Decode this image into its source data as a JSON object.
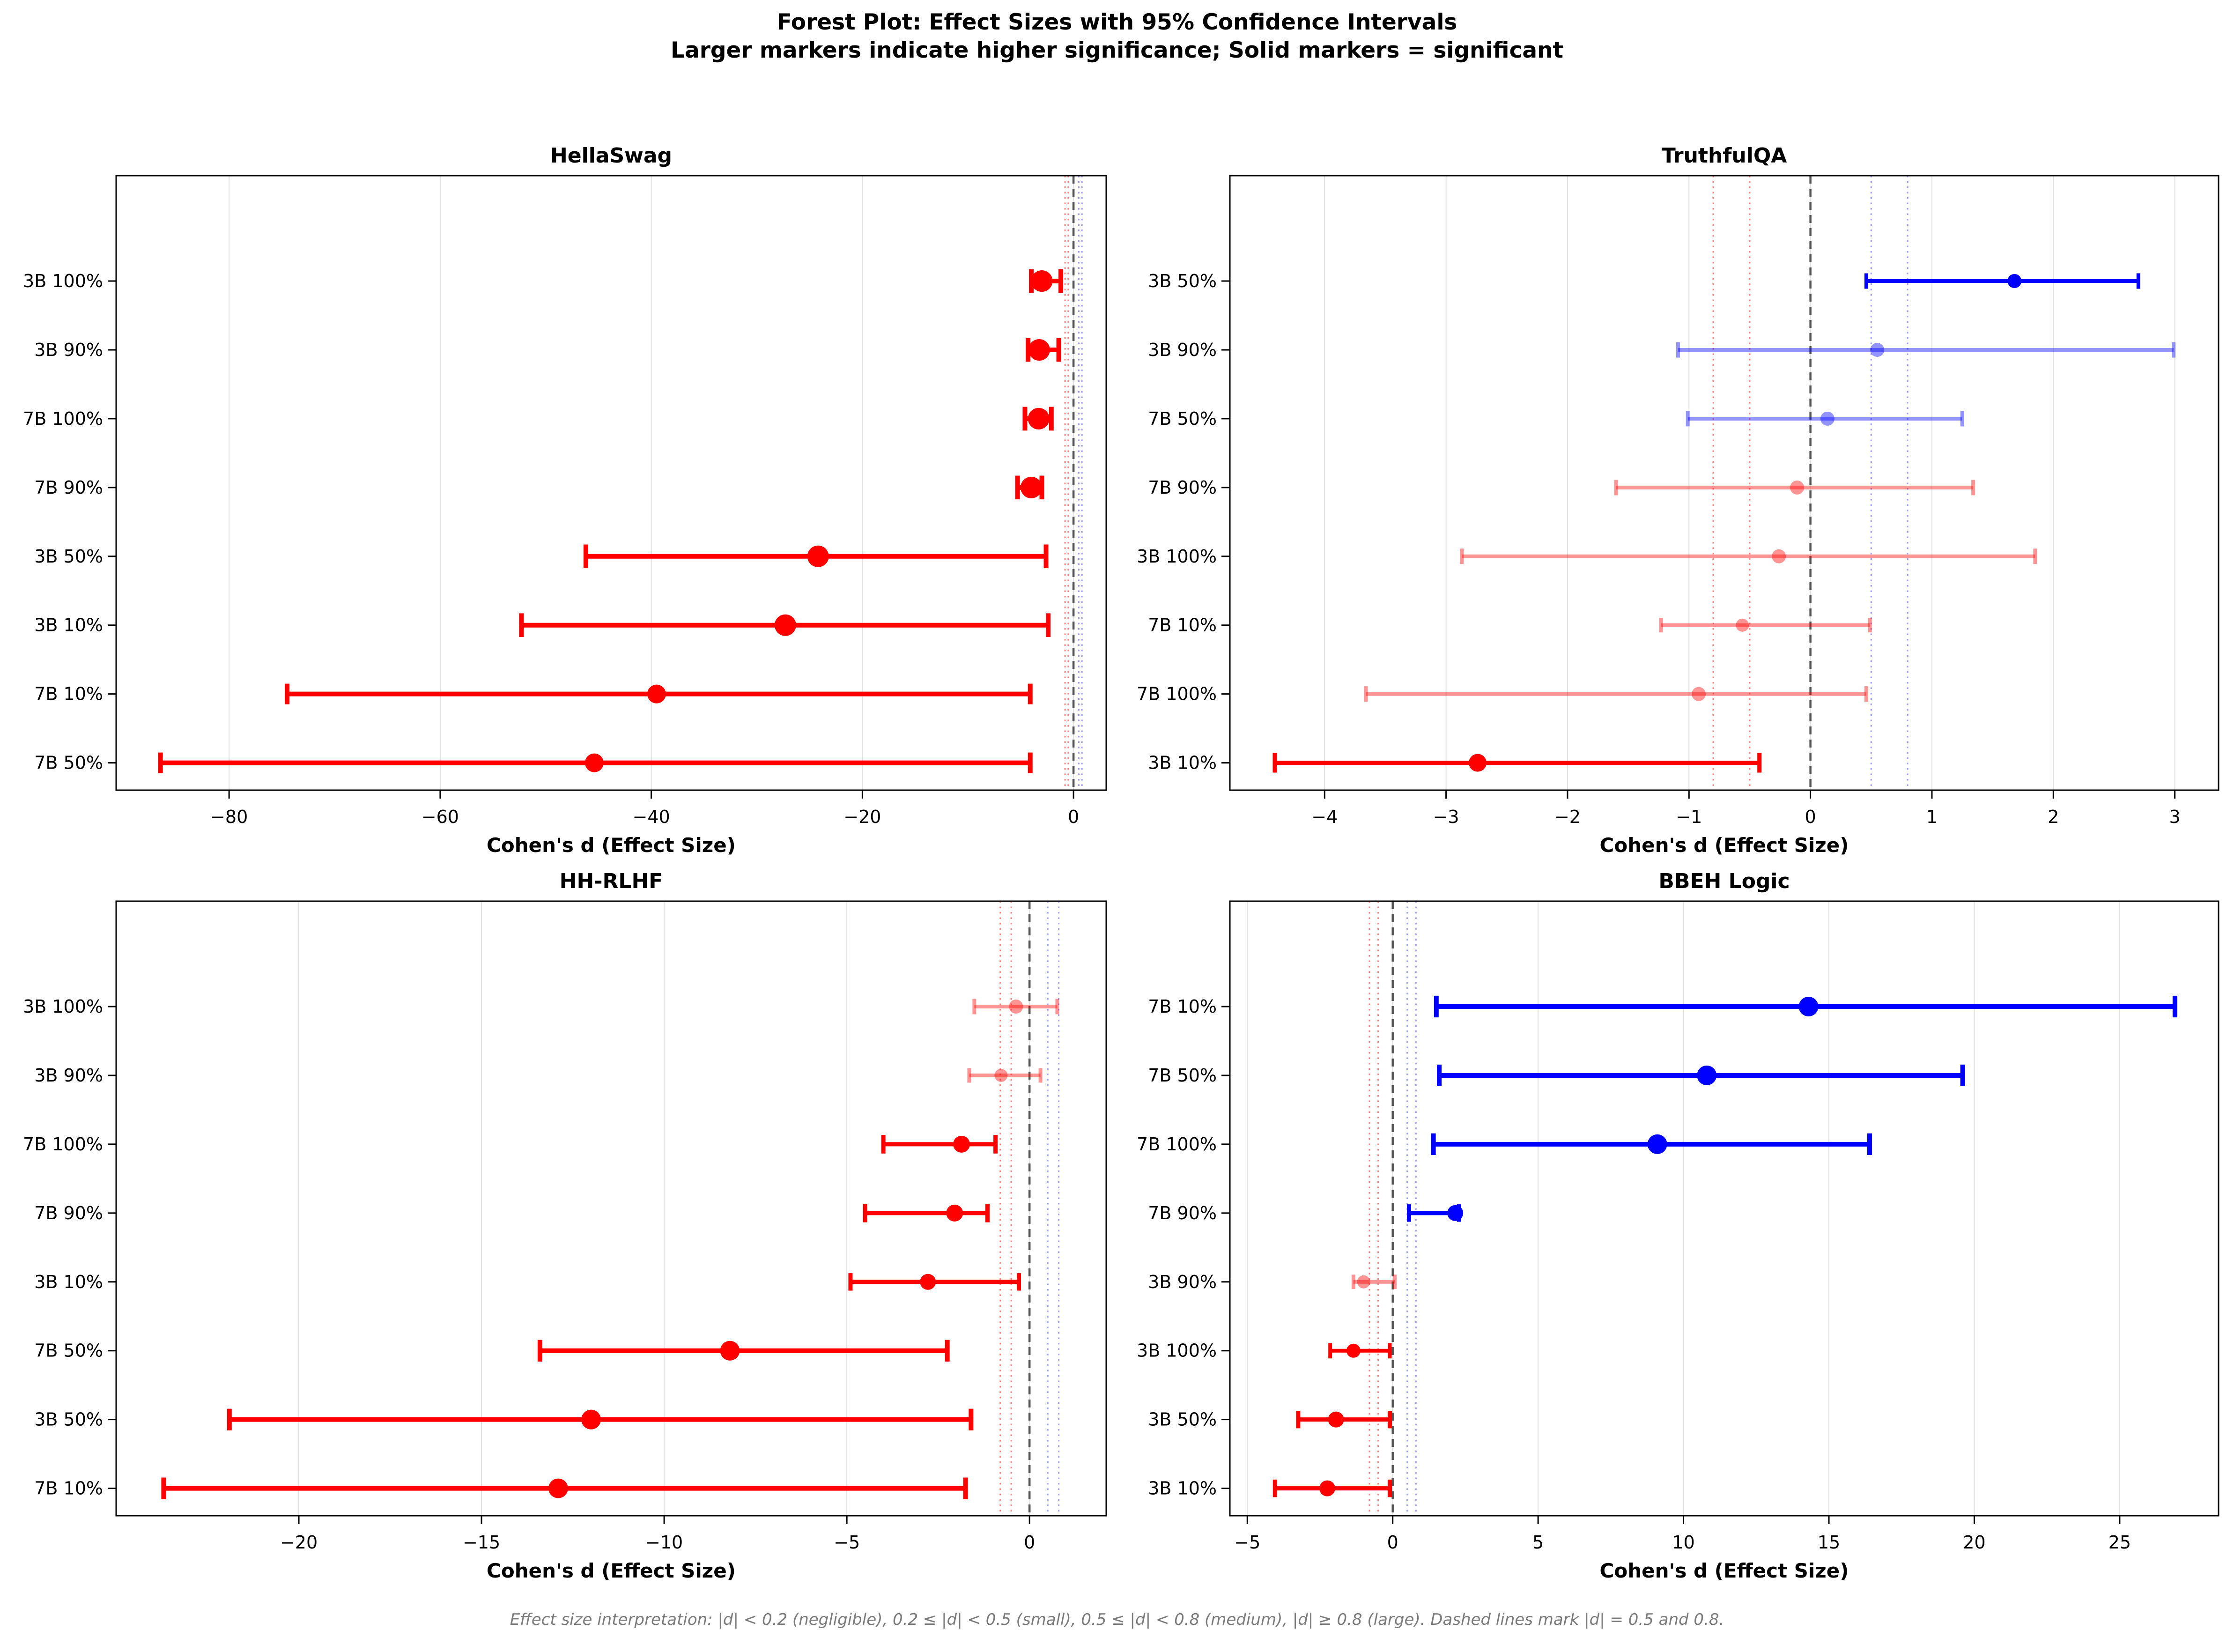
{
  "header": {
    "title_line1": "Forest Plot: Effect Sizes with 95% Confidence Intervals",
    "title_line2": "Larger markers indicate higher significance; Solid markers = significant"
  },
  "footer": {
    "note": "Effect size interpretation: |d| < 0.2 (negligible), 0.2 ≤ |d| < 0.5 (small), 0.5 ≤ |d| < 0.8 (medium), |d| ≥ 0.8 (large). Dashed lines mark |d| = 0.5 and 0.8."
  },
  "colors": {
    "negative": "#ff0000",
    "positive": "#0000ff",
    "zero_line": "#555555",
    "ref_negative": "rgba(255,0,0,0.5)",
    "ref_positive": "rgba(0,0,255,0.38)",
    "grid": "#e0e0e0",
    "axis": "#000000",
    "tick_text": "#000000",
    "footer_text": "#7a7a7a",
    "nonsignificant_opacity": 0.42
  },
  "reference_lines": {
    "zero": 0,
    "negative": [
      -0.8,
      -0.5
    ],
    "positive": [
      0.5,
      0.8
    ]
  },
  "chart_data": [
    {
      "type": "forest",
      "title": "HellaSwag",
      "xlabel": "Cohen's d (Effect Size)",
      "xlim": [
        -90.7,
        3.1
      ],
      "xticks": [
        -80,
        -60,
        -40,
        -20,
        0
      ],
      "rows": [
        {
          "label": "3B 100%",
          "d": -3.0,
          "ci_low": -4.0,
          "ci_high": -1.2,
          "significant": true,
          "direction": "negative",
          "marker_size": 46
        },
        {
          "label": "3B 90%",
          "d": -3.25,
          "ci_low": -4.3,
          "ci_high": -1.4,
          "significant": true,
          "direction": "negative",
          "marker_size": 46
        },
        {
          "label": "7B 100%",
          "d": -3.3,
          "ci_low": -4.6,
          "ci_high": -2.1,
          "significant": true,
          "direction": "negative",
          "marker_size": 46
        },
        {
          "label": "7B 90%",
          "d": -4.0,
          "ci_low": -5.3,
          "ci_high": -3.0,
          "significant": true,
          "direction": "negative",
          "marker_size": 46
        },
        {
          "label": "3B 50%",
          "d": -24.2,
          "ci_low": -46.2,
          "ci_high": -2.6,
          "significant": true,
          "direction": "negative",
          "marker_size": 46
        },
        {
          "label": "3B 10%",
          "d": -27.3,
          "ci_low": -52.3,
          "ci_high": -2.4,
          "significant": true,
          "direction": "negative",
          "marker_size": 46
        },
        {
          "label": "7B 10%",
          "d": -39.5,
          "ci_low": -74.5,
          "ci_high": -4.1,
          "significant": true,
          "direction": "negative",
          "marker_size": 40
        },
        {
          "label": "7B 50%",
          "d": -45.4,
          "ci_low": -86.5,
          "ci_high": -4.1,
          "significant": true,
          "direction": "negative",
          "marker_size": 40
        }
      ]
    },
    {
      "type": "forest",
      "title": "TruthfulQA",
      "xlabel": "Cohen's d (Effect Size)",
      "xlim": [
        -4.78,
        3.36
      ],
      "xticks": [
        -4,
        -3,
        -2,
        -1,
        0,
        1,
        2,
        3
      ],
      "rows": [
        {
          "label": "3B 50%",
          "d": 1.68,
          "ci_low": 0.46,
          "ci_high": 2.7,
          "significant": true,
          "direction": "positive",
          "marker_size": 30
        },
        {
          "label": "3B 90%",
          "d": 0.55,
          "ci_low": -1.09,
          "ci_high": 2.99,
          "significant": false,
          "direction": "positive",
          "marker_size": 30
        },
        {
          "label": "7B 50%",
          "d": 0.14,
          "ci_low": -1.01,
          "ci_high": 1.25,
          "significant": false,
          "direction": "positive",
          "marker_size": 30
        },
        {
          "label": "7B 90%",
          "d": -0.11,
          "ci_low": -1.6,
          "ci_high": 1.34,
          "significant": false,
          "direction": "negative",
          "marker_size": 30
        },
        {
          "label": "3B 100%",
          "d": -0.26,
          "ci_low": -2.87,
          "ci_high": 1.85,
          "significant": false,
          "direction": "negative",
          "marker_size": 30
        },
        {
          "label": "7B 10%",
          "d": -0.56,
          "ci_low": -1.23,
          "ci_high": 0.49,
          "significant": false,
          "direction": "negative",
          "marker_size": 28
        },
        {
          "label": "7B 100%",
          "d": -0.92,
          "ci_low": -3.66,
          "ci_high": 0.46,
          "significant": false,
          "direction": "negative",
          "marker_size": 30
        },
        {
          "label": "3B 10%",
          "d": -2.74,
          "ci_low": -4.41,
          "ci_high": -0.42,
          "significant": true,
          "direction": "negative",
          "marker_size": 38
        }
      ]
    },
    {
      "type": "forest",
      "title": "HH-RLHF",
      "xlabel": "Cohen's d (Effect Size)",
      "xlim": [
        -25.0,
        2.1
      ],
      "xticks": [
        -20,
        -15,
        -10,
        -5,
        0
      ],
      "rows": [
        {
          "label": "3B 100%",
          "d": -0.37,
          "ci_low": -1.51,
          "ci_high": 0.76,
          "significant": false,
          "direction": "negative",
          "marker_size": 30
        },
        {
          "label": "3B 90%",
          "d": -0.78,
          "ci_low": -1.65,
          "ci_high": 0.3,
          "significant": false,
          "direction": "negative",
          "marker_size": 28
        },
        {
          "label": "7B 100%",
          "d": -1.86,
          "ci_low": -4.0,
          "ci_high": -0.93,
          "significant": true,
          "direction": "negative",
          "marker_size": 36
        },
        {
          "label": "7B 90%",
          "d": -2.05,
          "ci_low": -4.5,
          "ci_high": -1.15,
          "significant": true,
          "direction": "negative",
          "marker_size": 36
        },
        {
          "label": "3B 10%",
          "d": -2.78,
          "ci_low": -4.9,
          "ci_high": -0.29,
          "significant": true,
          "direction": "negative",
          "marker_size": 34
        },
        {
          "label": "7B 50%",
          "d": -8.2,
          "ci_low": -13.4,
          "ci_high": -2.25,
          "significant": true,
          "direction": "negative",
          "marker_size": 42
        },
        {
          "label": "3B 50%",
          "d": -12.0,
          "ci_low": -21.9,
          "ci_high": -1.6,
          "significant": true,
          "direction": "negative",
          "marker_size": 42
        },
        {
          "label": "7B 10%",
          "d": -12.9,
          "ci_low": -23.7,
          "ci_high": -1.75,
          "significant": true,
          "direction": "negative",
          "marker_size": 42
        }
      ]
    },
    {
      "type": "forest",
      "title": "BBEH Logic",
      "xlabel": "Cohen's d (Effect Size)",
      "xlim": [
        -5.6,
        28.4
      ],
      "xticks": [
        -5,
        0,
        5,
        10,
        15,
        20,
        25
      ],
      "rows": [
        {
          "label": "7B 10%",
          "d": 14.3,
          "ci_low": 1.5,
          "ci_high": 26.9,
          "significant": true,
          "direction": "positive",
          "marker_size": 42
        },
        {
          "label": "7B 50%",
          "d": 10.8,
          "ci_low": 1.6,
          "ci_high": 19.6,
          "significant": true,
          "direction": "positive",
          "marker_size": 42
        },
        {
          "label": "7B 100%",
          "d": 9.1,
          "ci_low": 1.4,
          "ci_high": 16.4,
          "significant": true,
          "direction": "positive",
          "marker_size": 42
        },
        {
          "label": "7B 90%",
          "d": 2.15,
          "ci_low": 0.56,
          "ci_high": 2.28,
          "significant": true,
          "direction": "positive",
          "marker_size": 34
        },
        {
          "label": "3B 90%",
          "d": -1.0,
          "ci_low": -1.35,
          "ci_high": 0.07,
          "significant": false,
          "direction": "negative",
          "marker_size": 28
        },
        {
          "label": "3B 100%",
          "d": -1.35,
          "ci_low": -2.15,
          "ci_high": -0.1,
          "significant": true,
          "direction": "negative",
          "marker_size": 30
        },
        {
          "label": "3B 50%",
          "d": -1.95,
          "ci_low": -3.25,
          "ci_high": -0.1,
          "significant": true,
          "direction": "negative",
          "marker_size": 34
        },
        {
          "label": "3B 10%",
          "d": -2.25,
          "ci_low": -4.05,
          "ci_high": -0.1,
          "significant": true,
          "direction": "negative",
          "marker_size": 34
        }
      ]
    }
  ]
}
